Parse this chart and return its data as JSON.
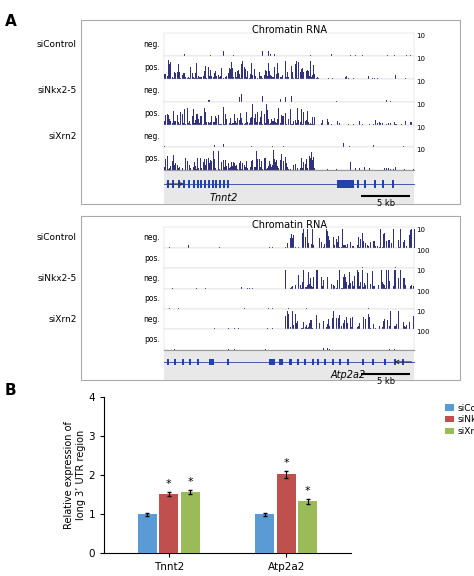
{
  "chromatin_title": "Chromatin RNA",
  "panel1_labels": [
    "siControl",
    "siNkx2-5",
    "siXrn2"
  ],
  "panel1_sublabels": [
    "neg.",
    "pos.",
    "neg.",
    "pos.",
    "neg.",
    "pos."
  ],
  "panel1_scale_labels": [
    "10",
    "10",
    "10",
    "10",
    "10",
    "10"
  ],
  "panel1_gene": "Tnnt2",
  "panel1_scale": "5 kb",
  "panel2_labels": [
    "siControl",
    "siNkx2-5",
    "siXrn2"
  ],
  "panel2_sublabels": [
    "neg.",
    "pos.",
    "neg.",
    "pos.",
    "neg.",
    "pos."
  ],
  "panel2_scale_labels": [
    "10",
    "100",
    "10",
    "100",
    "10",
    "100"
  ],
  "panel2_gene": "Atp2a2",
  "panel2_scale": "5 kb",
  "bar_groups": [
    "Tnnt2",
    "Atp2a2"
  ],
  "bar_values": [
    [
      1.0,
      1.52,
      1.57
    ],
    [
      1.0,
      2.02,
      1.33
    ]
  ],
  "bar_errors": [
    [
      0.04,
      0.05,
      0.05
    ],
    [
      0.04,
      0.08,
      0.06
    ]
  ],
  "bar_colors": [
    "#5b9bd5",
    "#c0504d",
    "#9bbb59"
  ],
  "legend_labels": [
    "siControl",
    "siNkx2-5",
    "siXrn2"
  ],
  "ylabel_bar": "Relative expression of\nlong 3’ UTR region",
  "ylim_bar": [
    0,
    4
  ],
  "yticks_bar": [
    0,
    1,
    2,
    3,
    4
  ],
  "bg_color": "#ffffff",
  "track_color": "#1a1a6e",
  "border_color": "#aaaaaa"
}
